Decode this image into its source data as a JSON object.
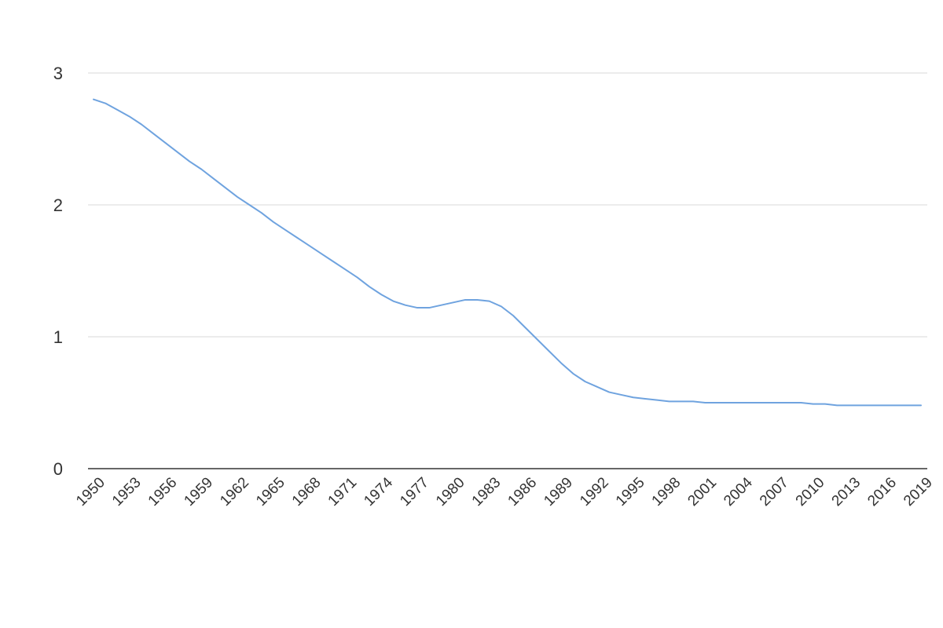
{
  "chart_data": {
    "type": "line",
    "title": "",
    "xlabel": "",
    "ylabel": "",
    "ylim": [
      0,
      3
    ],
    "y_ticks": [
      "0",
      "1",
      "2",
      "3"
    ],
    "x_tick_labels": [
      "1950",
      "1953",
      "1956",
      "1959",
      "1962",
      "1965",
      "1968",
      "1971",
      "1974",
      "1977",
      "1980",
      "1983",
      "1986",
      "1989",
      "1992",
      "1995",
      "1998",
      "2001",
      "2004",
      "2007",
      "2010",
      "2013",
      "2016",
      "2019"
    ],
    "grid": true,
    "legend": "none",
    "line_color": "#6fa3df",
    "x": [
      1950,
      1951,
      1952,
      1953,
      1954,
      1955,
      1956,
      1957,
      1958,
      1959,
      1960,
      1961,
      1962,
      1963,
      1964,
      1965,
      1966,
      1967,
      1968,
      1969,
      1970,
      1971,
      1972,
      1973,
      1974,
      1975,
      1976,
      1977,
      1978,
      1979,
      1980,
      1981,
      1982,
      1983,
      1984,
      1985,
      1986,
      1987,
      1988,
      1989,
      1990,
      1991,
      1992,
      1993,
      1994,
      1995,
      1996,
      1997,
      1998,
      1999,
      2000,
      2001,
      2002,
      2003,
      2004,
      2005,
      2006,
      2007,
      2008,
      2009,
      2010,
      2011,
      2012,
      2013,
      2014,
      2015,
      2016,
      2017,
      2018,
      2019
    ],
    "series": [
      {
        "values": [
          2.8,
          2.77,
          2.72,
          2.67,
          2.61,
          2.54,
          2.47,
          2.4,
          2.33,
          2.27,
          2.2,
          2.13,
          2.06,
          2.0,
          1.94,
          1.87,
          1.81,
          1.75,
          1.69,
          1.63,
          1.57,
          1.51,
          1.45,
          1.38,
          1.32,
          1.27,
          1.24,
          1.22,
          1.22,
          1.24,
          1.26,
          1.28,
          1.28,
          1.27,
          1.23,
          1.16,
          1.07,
          0.98,
          0.89,
          0.8,
          0.72,
          0.66,
          0.62,
          0.58,
          0.56,
          0.54,
          0.53,
          0.52,
          0.51,
          0.51,
          0.51,
          0.5,
          0.5,
          0.5,
          0.5,
          0.5,
          0.5,
          0.5,
          0.5,
          0.5,
          0.49,
          0.49,
          0.48,
          0.48,
          0.48,
          0.48,
          0.48,
          0.48,
          0.48,
          0.48
        ]
      }
    ]
  }
}
